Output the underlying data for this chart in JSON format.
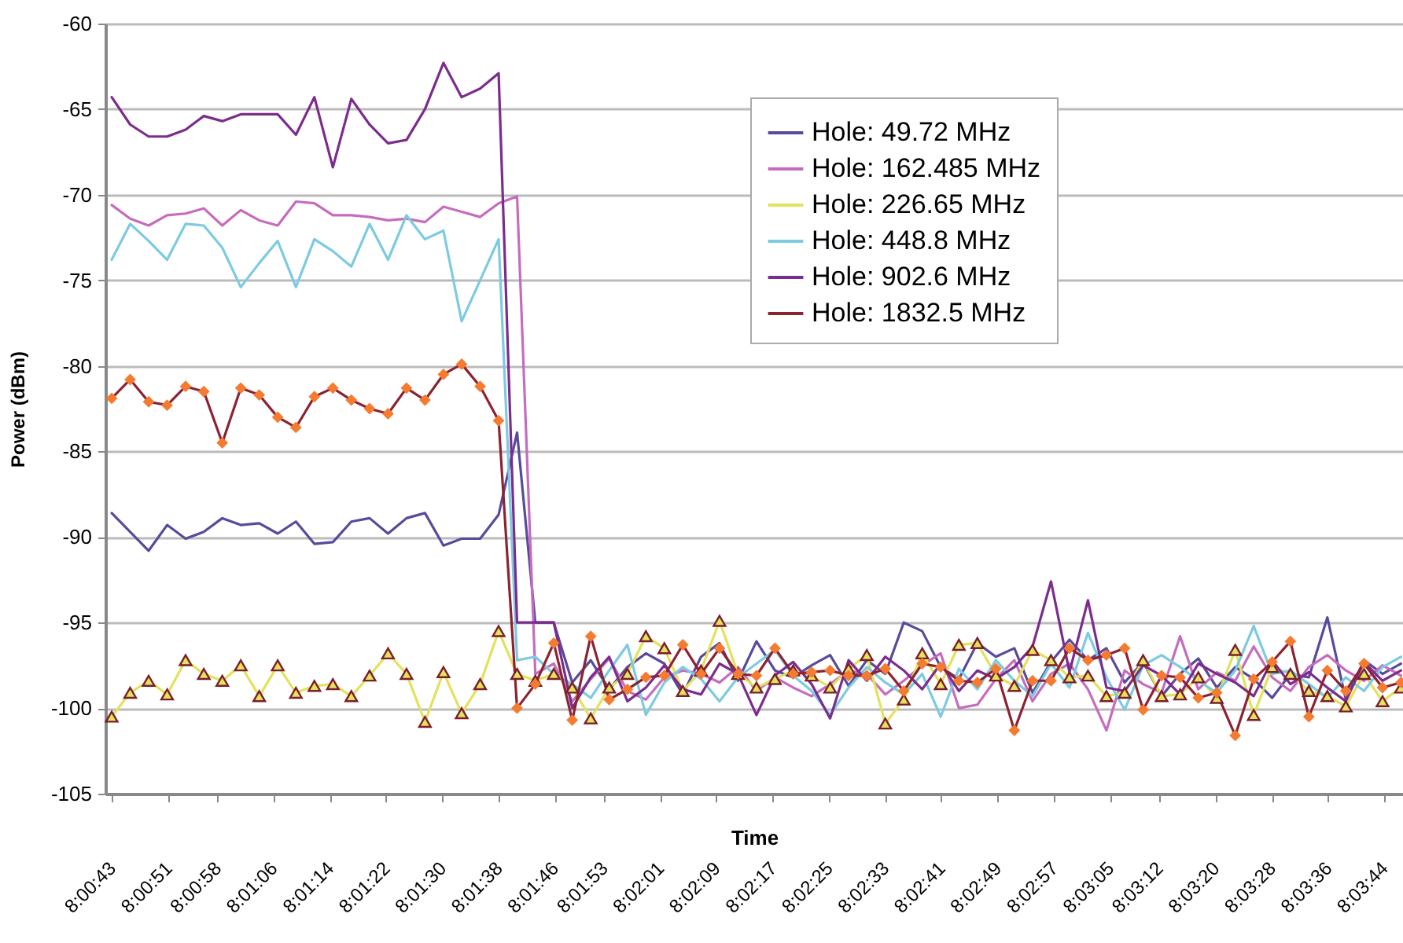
{
  "chart_data": {
    "type": "line",
    "xlabel": "Time",
    "ylabel": "Power (dBm)",
    "x": [
      8.01194,
      8.01267,
      8.0134,
      8.01413,
      8.01486,
      8.01558,
      8.01631,
      8.01704,
      8.01777,
      8.0185,
      8.01922,
      8.01995,
      8.02068,
      8.02141,
      8.02213,
      8.02286,
      8.02359,
      8.02432,
      8.02505,
      8.02577,
      8.0265,
      8.02723,
      8.02796,
      8.02868,
      8.02941,
      8.03014,
      8.03087,
      8.0316,
      8.03232,
      8.03305,
      8.03378,
      8.03451,
      8.03523,
      8.03596,
      8.03669,
      8.03742,
      8.03815,
      8.03887,
      8.0396,
      8.04033,
      8.04106,
      8.04178,
      8.04251,
      8.04324,
      8.04397,
      8.0447,
      8.04542,
      8.04615,
      8.04688,
      8.04761,
      8.04833,
      8.04906,
      8.04979,
      8.05052,
      8.05125,
      8.05197,
      8.0527,
      8.05343,
      8.05416,
      8.05488,
      8.05561,
      8.05634,
      8.05707,
      8.0578,
      8.05852,
      8.05925,
      8.05998,
      8.06071,
      8.06143,
      8.06216,
      8.06289
    ],
    "xlim": [
      8.01169,
      8.06297
    ],
    "xticks": [
      {
        "value": 8.01194,
        "label": "8:00:43"
      },
      {
        "value": 8.01417,
        "label": "8:00:51"
      },
      {
        "value": 8.01611,
        "label": "8:00:58"
      },
      {
        "value": 8.01833,
        "label": "8:01:06"
      },
      {
        "value": 8.02056,
        "label": "8:01:14"
      },
      {
        "value": 8.02278,
        "label": "8:01:22"
      },
      {
        "value": 8.025,
        "label": "8:01:30"
      },
      {
        "value": 8.02722,
        "label": "8:01:38"
      },
      {
        "value": 8.02944,
        "label": "8:01:46"
      },
      {
        "value": 8.03139,
        "label": "8:01:53"
      },
      {
        "value": 8.03361,
        "label": "8:02:01"
      },
      {
        "value": 8.03583,
        "label": "8:02:09"
      },
      {
        "value": 8.03806,
        "label": "8:02:17"
      },
      {
        "value": 8.04028,
        "label": "8:02:25"
      },
      {
        "value": 8.0425,
        "label": "8:02:33"
      },
      {
        "value": 8.04472,
        "label": "8:02:41"
      },
      {
        "value": 8.04694,
        "label": "8:02:49"
      },
      {
        "value": 8.04917,
        "label": "8:02:57"
      },
      {
        "value": 8.05139,
        "label": "8:03:05"
      },
      {
        "value": 8.05333,
        "label": "8:03:12"
      },
      {
        "value": 8.05556,
        "label": "8:03:20"
      },
      {
        "value": 8.05778,
        "label": "8:03:28"
      },
      {
        "value": 8.06,
        "label": "8:03:36"
      },
      {
        "value": 8.06222,
        "label": "8:03:44"
      }
    ],
    "ylim": [
      -105,
      -60
    ],
    "yticks": [
      -105,
      -100,
      -95,
      -90,
      -85,
      -80,
      -75,
      -70,
      -65,
      -60
    ],
    "grid": "y",
    "legend": "top right",
    "series": [
      {
        "name": "Hole: 49.72 MHz",
        "color": "#5a4a9a",
        "marker": "none",
        "values": [
          -88.6,
          -89.7,
          -90.8,
          -89.3,
          -90.1,
          -89.7,
          -88.9,
          -89.3,
          -89.2,
          -89.8,
          -89.1,
          -90.4,
          -90.3,
          -89.1,
          -88.9,
          -89.8,
          -88.9,
          -88.6,
          -90.5,
          -90.1,
          -90.1,
          -88.7,
          -83.9,
          -95,
          -95,
          -98.5,
          -97.2,
          -98.9,
          -97.6,
          -96.8,
          -97.4,
          -99.2,
          -97.0,
          -96.2,
          -98.4,
          -96.1,
          -97.8,
          -98.2,
          -97.5,
          -96.9,
          -98.7,
          -97.2,
          -98.0,
          -95.0,
          -95.5,
          -97.6,
          -98.3,
          -96.2,
          -97.0,
          -96.5,
          -99.1,
          -97.3,
          -96.0,
          -97.2,
          -96.5,
          -98.5,
          -97.3,
          -99.3,
          -98.0,
          -97.1,
          -98.8,
          -97.6,
          -98.3,
          -99.4,
          -98.0,
          -98.2,
          -94.7,
          -99.5,
          -97.2,
          -98.0,
          -97.4
        ]
      },
      {
        "name": "Hole: 162.485 MHz",
        "color": "#c66cbe",
        "marker": "none",
        "values": [
          -70.6,
          -71.4,
          -71.8,
          -71.2,
          -71.1,
          -70.8,
          -71.8,
          -70.9,
          -71.5,
          -71.8,
          -70.4,
          -70.5,
          -71.2,
          -71.2,
          -71.3,
          -71.5,
          -71.4,
          -71.6,
          -70.7,
          -71.0,
          -71.3,
          -70.5,
          -70.1,
          -98.0,
          -97.4,
          -99.6,
          -98.3,
          -97.1,
          -99.0,
          -99.5,
          -98.2,
          -97.8,
          -98.0,
          -98.5,
          -97.6,
          -99.0,
          -98.2,
          -98.8,
          -99.3,
          -98.6,
          -97.8,
          -98.0,
          -99.2,
          -98.4,
          -97.5,
          -96.8,
          -100.0,
          -99.8,
          -98.3,
          -97.2,
          -99.6,
          -98.0,
          -97.4,
          -98.9,
          -101.3,
          -97.8,
          -98.6,
          -99.1,
          -95.8,
          -98.9,
          -97.9,
          -98.4,
          -96.4,
          -98.2,
          -99.0,
          -97.6,
          -96.9,
          -97.8,
          -98.4,
          -97.5,
          -98.1
        ]
      },
      {
        "name": "Hole: 226.65 MHz",
        "color": "#e2e25c",
        "marker": "triangle",
        "values": [
          -100.5,
          -99.1,
          -98.4,
          -99.2,
          -97.2,
          -98.0,
          -98.4,
          -97.5,
          -99.3,
          -97.5,
          -99.1,
          -98.7,
          -98.6,
          -99.3,
          -98.1,
          -96.8,
          -98.0,
          -100.8,
          -97.9,
          -100.3,
          -98.6,
          -95.5,
          -98.0,
          -98.4,
          -98.0,
          -98.8,
          -100.6,
          -98.8,
          -98.0,
          -95.8,
          -96.5,
          -99.0,
          -97.8,
          -94.9,
          -98.0,
          -98.8,
          -98.3,
          -97.8,
          -98.1,
          -98.8,
          -97.7,
          -96.9,
          -100.9,
          -99.5,
          -96.8,
          -98.6,
          -96.3,
          -96.2,
          -98.1,
          -98.7,
          -96.6,
          -97.2,
          -98.2,
          -98.1,
          -99.3,
          -99.1,
          -97.2,
          -99.3,
          -99.2,
          -98.2,
          -99.4,
          -96.6,
          -100.4,
          -97.6,
          -98.0,
          -99.0,
          -99.3,
          -99.9,
          -98.0,
          -99.6,
          -98.8
        ]
      },
      {
        "name": "Hole: 448.8 MHz",
        "color": "#7ccbe0",
        "marker": "none",
        "values": [
          -73.8,
          -71.7,
          -72.7,
          -73.8,
          -71.7,
          -71.8,
          -73.1,
          -75.4,
          -74.0,
          -72.7,
          -75.4,
          -72.6,
          -73.3,
          -74.2,
          -71.7,
          -73.8,
          -71.2,
          -72.6,
          -72.1,
          -77.4,
          -75.0,
          -72.6,
          -97.2,
          -97.0,
          -98.0,
          -98.6,
          -99.4,
          -97.8,
          -96.3,
          -100.4,
          -98.5,
          -97.6,
          -98.3,
          -99.6,
          -98.2,
          -97.4,
          -96.6,
          -98.1,
          -99.0,
          -100.4,
          -98.8,
          -97.6,
          -98.5,
          -99.2,
          -98.0,
          -100.5,
          -97.7,
          -98.9,
          -97.2,
          -98.4,
          -99.3,
          -97.4,
          -98.8,
          -95.6,
          -98.2,
          -100.1,
          -97.5,
          -96.9,
          -97.6,
          -98.4,
          -99.1,
          -97.8,
          -95.2,
          -98.0,
          -97.8,
          -98.6,
          -99.4,
          -98.2,
          -99.0,
          -97.6,
          -97.0
        ]
      },
      {
        "name": "Hole: 902.6 MHz",
        "color": "#7b2c8c",
        "marker": "none",
        "values": [
          -64.3,
          -65.9,
          -66.6,
          -66.6,
          -66.2,
          -65.4,
          -65.7,
          -65.3,
          -65.3,
          -65.3,
          -66.5,
          -64.3,
          -68.4,
          -64.4,
          -65.9,
          -67.0,
          -66.8,
          -65.0,
          -62.3,
          -64.3,
          -63.8,
          -62.9,
          -95.0,
          -95.0,
          -95.0,
          -100.0,
          -98.2,
          -97.0,
          -99.6,
          -98.8,
          -97.5,
          -98.9,
          -99.2,
          -97.4,
          -98.0,
          -100.4,
          -98.1,
          -97.3,
          -98.6,
          -100.6,
          -97.2,
          -98.4,
          -97.0,
          -97.8,
          -98.9,
          -97.4,
          -99.0,
          -97.8,
          -98.3,
          -97.6,
          -96.4,
          -92.6,
          -97.9,
          -93.7,
          -98.8,
          -99.0,
          -97.5,
          -98.1,
          -99.2,
          -97.4,
          -98.0,
          -98.5,
          -99.3,
          -97.2,
          -98.6,
          -97.9,
          -98.8,
          -99.6,
          -97.3,
          -98.4,
          -97.8
        ]
      },
      {
        "name": "Hole: 1832.5 MHz",
        "color": "#8b2332",
        "marker": "diamond",
        "values": [
          -81.9,
          -80.8,
          -82.1,
          -82.3,
          -81.2,
          -81.5,
          -84.5,
          -81.3,
          -81.7,
          -83.0,
          -83.6,
          -81.8,
          -81.3,
          -82.0,
          -82.5,
          -82.8,
          -81.3,
          -82.0,
          -80.5,
          -79.9,
          -81.2,
          -83.2,
          -100.0,
          -98.6,
          -96.2,
          -100.7,
          -95.8,
          -99.5,
          -98.9,
          -98.2,
          -98.1,
          -96.3,
          -98.0,
          -96.5,
          -98.0,
          -98.1,
          -96.5,
          -98.0,
          -97.9,
          -97.8,
          -98.1,
          -98.1,
          -97.7,
          -99.0,
          -97.4,
          -97.6,
          -98.4,
          -98.5,
          -97.7,
          -101.3,
          -98.4,
          -98.4,
          -96.5,
          -97.2,
          -96.9,
          -96.5,
          -100.1,
          -98.1,
          -98.2,
          -99.4,
          -99.1,
          -101.6,
          -98.3,
          -97.3,
          -96.1,
          -100.5,
          -97.8,
          -99.0,
          -97.4,
          -98.8,
          -98.5
        ]
      }
    ]
  }
}
